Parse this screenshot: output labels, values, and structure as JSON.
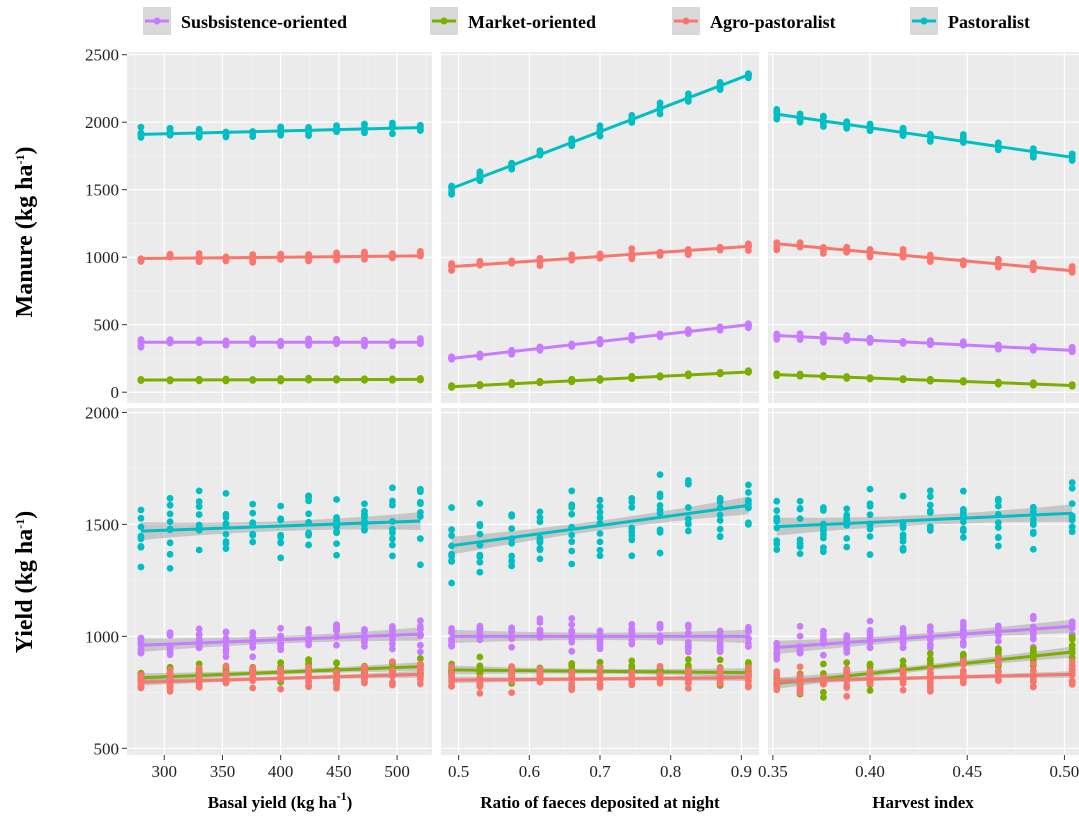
{
  "legend": [
    {
      "name": "Susbsistence-oriented",
      "color": "#C77CFF"
    },
    {
      "name": "Market-oriented",
      "color": "#7CAE00"
    },
    {
      "name": "Agro-pastoralist",
      "color": "#F8766D"
    },
    {
      "name": "Pastoralist",
      "color": "#00BFC4"
    }
  ],
  "y_titles": [
    {
      "main": "Manure (kg ha",
      "sup": "-1",
      "end": ")"
    },
    {
      "main": "Yield (kg ha",
      "sup": "-1",
      "end": ")"
    }
  ],
  "x_titles": [
    {
      "main": "Basal yield (kg ha",
      "sup": "-1",
      "end": ")"
    },
    {
      "main": "Ratio of faeces deposited at night",
      "sup": "",
      "end": ""
    },
    {
      "main": "Harvest index",
      "sup": "",
      "end": ""
    }
  ],
  "chart_data": {
    "type": "scatter",
    "layout": "facet-grid 2 rows x 3 columns, points with linear regression lines and grey confidence bands",
    "legend_position": "top",
    "grid": true,
    "background": "#EBEBEB",
    "rows": [
      {
        "variable": "Manure",
        "ylim": [
          -80,
          2520
        ],
        "yticks": [
          0,
          500,
          1000,
          1500,
          2000,
          2500
        ]
      },
      {
        "variable": "Yield",
        "ylim": [
          470,
          2020
        ],
        "yticks": [
          500,
          1000,
          1500,
          2000
        ]
      }
    ],
    "columns": [
      {
        "variable": "Basal yield",
        "xlim": [
          268,
          530
        ],
        "xticks": [
          300,
          350,
          400,
          450,
          500
        ],
        "xtick_labels": [
          "300",
          "350",
          "400",
          "450",
          "500"
        ],
        "x": [
          280,
          305,
          330,
          353,
          376,
          400,
          424,
          448,
          472,
          496,
          520
        ]
      },
      {
        "variable": "Ratio of faeces deposited at night",
        "xlim": [
          0.475,
          0.925
        ],
        "xticks": [
          0.5,
          0.6,
          0.7,
          0.8,
          0.9
        ],
        "xtick_labels": [
          "0.5",
          "0.6",
          "0.7",
          "0.8",
          "0.9"
        ],
        "x": [
          0.49,
          0.53,
          0.575,
          0.615,
          0.66,
          0.7,
          0.745,
          0.785,
          0.825,
          0.87,
          0.91
        ]
      },
      {
        "variable": "Harvest index",
        "xlim": [
          0.3475,
          0.5075
        ],
        "xticks": [
          0.35,
          0.4,
          0.45,
          0.5
        ],
        "xtick_labels": [
          "0.35",
          "0.40",
          "0.45",
          "0.50"
        ],
        "x": [
          0.352,
          0.364,
          0.376,
          0.388,
          0.4,
          0.417,
          0.431,
          0.448,
          0.466,
          0.484,
          0.504
        ]
      }
    ],
    "series_order": [
      "Susbsistence-oriented",
      "Market-oriented",
      "Agro-pastoralist",
      "Pastoralist"
    ],
    "panels": [
      {
        "row": 0,
        "col": 0,
        "fit": [
          [
            370,
            370
          ],
          [
            90,
            95
          ],
          [
            990,
            1010
          ],
          [
            1910,
            1960
          ]
        ],
        "spread": [
          35,
          12,
          45,
          55
        ],
        "band": [
          0,
          0,
          0,
          0
        ]
      },
      {
        "row": 0,
        "col": 1,
        "fit": [
          [
            250,
            500
          ],
          [
            40,
            150
          ],
          [
            930,
            1080
          ],
          [
            1510,
            2350
          ]
        ],
        "spread": [
          30,
          12,
          45,
          55
        ],
        "band": [
          0,
          0,
          0,
          0
        ]
      },
      {
        "row": 0,
        "col": 2,
        "fit": [
          [
            420,
            310
          ],
          [
            130,
            50
          ],
          [
            1100,
            900
          ],
          [
            2060,
            1740
          ]
        ],
        "spread": [
          35,
          12,
          50,
          60
        ],
        "band": [
          0,
          0,
          0,
          0
        ]
      },
      {
        "row": 1,
        "col": 0,
        "fit": [
          [
            960,
            1010
          ],
          [
            815,
            865
          ],
          [
            795,
            830
          ],
          [
            1470,
            1515
          ]
        ],
        "spread": [
          90,
          70,
          70,
          200
        ],
        "band": [
          30,
          20,
          15,
          40
        ]
      },
      {
        "row": 1,
        "col": 1,
        "fit": [
          [
            1000,
            1000
          ],
          [
            850,
            838
          ],
          [
            805,
            815
          ],
          [
            1405,
            1585
          ]
        ],
        "spread": [
          90,
          70,
          70,
          200
        ],
        "band": [
          30,
          20,
          15,
          40
        ]
      },
      {
        "row": 1,
        "col": 2,
        "fit": [
          [
            950,
            1045
          ],
          [
            790,
            930
          ],
          [
            800,
            830
          ],
          [
            1490,
            1550
          ]
        ],
        "spread": [
          90,
          80,
          80,
          200
        ],
        "band": [
          30,
          25,
          15,
          40
        ]
      }
    ]
  }
}
